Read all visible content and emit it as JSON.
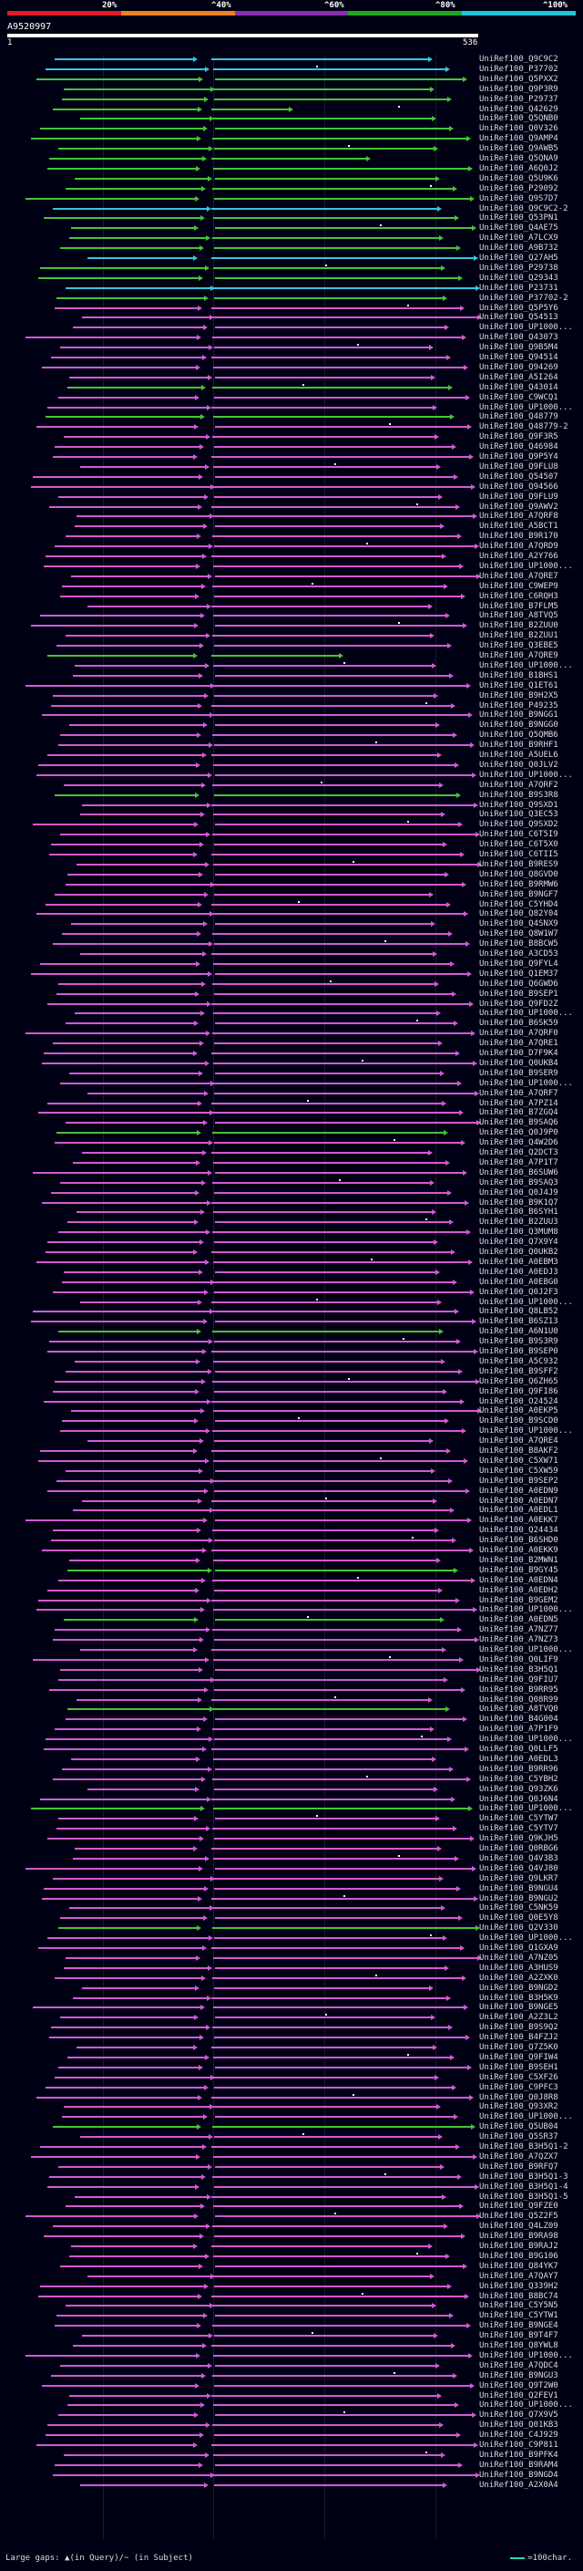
{
  "scale": {
    "labels": [
      "20%",
      "^40%",
      "^60%",
      "^80%",
      "^100%"
    ],
    "colors": [
      "#e21b2a",
      "#f08020",
      "#8a2fb0",
      "#1ea81e",
      "#1fc4d8"
    ]
  },
  "query": {
    "id": "A9520997",
    "start": "1",
    "end": "536"
  },
  "colors": {
    "cyan": "#35c6e2",
    "green": "#47c337",
    "magenta": "#d25ad3"
  },
  "footer": {
    "gaps_text": "Large gaps: ▲(in Query)/~ (in Subject)",
    "legend_text": "=100char."
  },
  "hits": [
    {
      "label": "UniRef100_Q9C9C2",
      "color": "cyan"
    },
    {
      "label": "UniRef100_P37702",
      "color": "cyan"
    },
    {
      "label": "UniRef100_Q5PXX2",
      "color": "green"
    },
    {
      "label": "UniRef100_Q9P3R9",
      "color": "green"
    },
    {
      "label": "UniRef100_P29737",
      "color": "green"
    },
    {
      "label": "UniRef100_Q42629",
      "color": "green"
    },
    {
      "label": "UniRef100_Q5QNB0",
      "color": "green"
    },
    {
      "label": "UniRef100_Q0V326",
      "color": "green"
    },
    {
      "label": "UniRef100_Q9AMP4",
      "color": "green"
    },
    {
      "label": "UniRef100_Q9AWB5",
      "color": "green"
    },
    {
      "label": "UniRef100_Q5QNA9",
      "color": "green"
    },
    {
      "label": "UniRef100_A6Q0J2",
      "color": "green"
    },
    {
      "label": "UniRef100_Q5U9K6",
      "color": "green"
    },
    {
      "label": "UniRef100_P29092",
      "color": "green"
    },
    {
      "label": "UniRef100_Q9S7D7",
      "color": "green"
    },
    {
      "label": "UniRef100_Q9C9C2-2",
      "color": "cyan"
    },
    {
      "label": "UniRef100_Q53PN1",
      "color": "green"
    },
    {
      "label": "UniRef100_Q4AE75",
      "color": "green"
    },
    {
      "label": "UniRef100_A7LCX9",
      "color": "green"
    },
    {
      "label": "UniRef100_A9B732",
      "color": "green"
    },
    {
      "label": "UniRef100_Q27AH5",
      "color": "cyan"
    },
    {
      "label": "UniRef100_P29738",
      "color": "green"
    },
    {
      "label": "UniRef100_Q29343",
      "color": "green"
    },
    {
      "label": "UniRef100_P23731",
      "color": "cyan"
    },
    {
      "label": "UniRef100_P37702-2",
      "color": "green"
    },
    {
      "label": "UniRef100_Q5P5Y6",
      "color": "magenta"
    },
    {
      "label": "UniRef100_Q54513",
      "color": "magenta"
    },
    {
      "label": "UniRef100_UP1000...",
      "color": "magenta"
    },
    {
      "label": "UniRef100_Q43073",
      "color": "magenta"
    },
    {
      "label": "UniRef100_Q9B5M4",
      "color": "magenta"
    },
    {
      "label": "UniRef100_Q94514",
      "color": "magenta"
    },
    {
      "label": "UniRef100_Q94269",
      "color": "magenta"
    },
    {
      "label": "UniRef100_A5I264",
      "color": "magenta"
    },
    {
      "label": "UniRef100_Q43014",
      "color": "green"
    },
    {
      "label": "UniRef100_C9WCQ1",
      "color": "magenta"
    },
    {
      "label": "UniRef100_UP1000...",
      "color": "magenta"
    },
    {
      "label": "UniRef100_Q48779",
      "color": "green"
    },
    {
      "label": "UniRef100_Q48779-2",
      "color": "magenta"
    },
    {
      "label": "UniRef100_Q9F3R5",
      "color": "magenta"
    },
    {
      "label": "UniRef100_Q46984",
      "color": "magenta"
    },
    {
      "label": "UniRef100_Q9P5Y4",
      "color": "magenta"
    },
    {
      "label": "UniRef100_Q9FLU8",
      "color": "magenta"
    },
    {
      "label": "UniRef100_Q54507",
      "color": "magenta"
    },
    {
      "label": "UniRef100_Q94566",
      "color": "magenta"
    },
    {
      "label": "UniRef100_Q9FLU9",
      "color": "magenta"
    },
    {
      "label": "UniRef100_Q9AWV2",
      "color": "magenta"
    },
    {
      "label": "UniRef100_A7QRF8",
      "color": "magenta"
    },
    {
      "label": "UniRef100_A5BCT1",
      "color": "magenta"
    },
    {
      "label": "UniRef100_B9R170",
      "color": "magenta"
    },
    {
      "label": "UniRef100_A7QRD9",
      "color": "magenta"
    },
    {
      "label": "UniRef100_A2Y766",
      "color": "magenta"
    },
    {
      "label": "UniRef100_UP1000...",
      "color": "magenta"
    },
    {
      "label": "UniRef100_A7QRE7",
      "color": "magenta"
    },
    {
      "label": "UniRef100_C9WEP9",
      "color": "magenta"
    },
    {
      "label": "UniRef100_C6RQH3",
      "color": "magenta"
    },
    {
      "label": "UniRef100_B7FLM5",
      "color": "magenta"
    },
    {
      "label": "UniRef100_A8TVQ5",
      "color": "magenta"
    },
    {
      "label": "UniRef100_B2ZUU0",
      "color": "magenta"
    },
    {
      "label": "UniRef100_B2ZUU1",
      "color": "magenta"
    },
    {
      "label": "UniRef100_Q3EBE5",
      "color": "magenta"
    },
    {
      "label": "UniRef100_A7QRE9",
      "color": "green"
    },
    {
      "label": "UniRef100_UP1000...",
      "color": "magenta"
    },
    {
      "label": "UniRef100_B1BHS1",
      "color": "magenta"
    },
    {
      "label": "UniRef100_Q1ET61",
      "color": "magenta"
    },
    {
      "label": "UniRef100_B9H2X5",
      "color": "magenta"
    },
    {
      "label": "UniRef100_P49235",
      "color": "magenta"
    },
    {
      "label": "UniRef100_B9NGG1",
      "color": "magenta"
    },
    {
      "label": "UniRef100_B9NGG0",
      "color": "magenta"
    },
    {
      "label": "UniRef100_Q5QMB6",
      "color": "magenta"
    },
    {
      "label": "UniRef100_B9RHF1",
      "color": "magenta"
    },
    {
      "label": "UniRef100_A5UEL6",
      "color": "magenta"
    },
    {
      "label": "UniRef100_Q0JLV2",
      "color": "magenta"
    },
    {
      "label": "UniRef100_UP1000...",
      "color": "magenta"
    },
    {
      "label": "UniRef100_A7QRF2",
      "color": "magenta"
    },
    {
      "label": "UniRef100_B9S3R8",
      "color": "green"
    },
    {
      "label": "UniRef100_Q9SXD1",
      "color": "magenta"
    },
    {
      "label": "UniRef100_Q3EC53",
      "color": "magenta"
    },
    {
      "label": "UniRef100_Q9SXD2",
      "color": "magenta"
    },
    {
      "label": "UniRef100_C6T5I9",
      "color": "magenta"
    },
    {
      "label": "UniRef100_C6T5X0",
      "color": "magenta"
    },
    {
      "label": "UniRef100_C6TII5",
      "color": "magenta"
    },
    {
      "label": "UniRef100_B9RES9",
      "color": "magenta"
    },
    {
      "label": "UniRef100_Q8GVD0",
      "color": "magenta"
    },
    {
      "label": "UniRef100_B9RMW6",
      "color": "magenta"
    },
    {
      "label": "UniRef100_B9NGF7",
      "color": "magenta"
    },
    {
      "label": "UniRef100_C5YHD4",
      "color": "magenta"
    },
    {
      "label": "UniRef100_Q82Y04",
      "color": "magenta"
    },
    {
      "label": "UniRef100_Q4SNX9",
      "color": "magenta"
    },
    {
      "label": "UniRef100_Q8W1W7",
      "color": "magenta"
    },
    {
      "label": "UniRef100_B8BCW5",
      "color": "magenta"
    },
    {
      "label": "UniRef100_A3CD53",
      "color": "magenta"
    },
    {
      "label": "UniRef100_Q9FYL4",
      "color": "magenta"
    },
    {
      "label": "UniRef100_Q1EM37",
      "color": "magenta"
    },
    {
      "label": "UniRef100_Q6GWD6",
      "color": "magenta"
    },
    {
      "label": "UniRef100_B9SEP1",
      "color": "magenta"
    },
    {
      "label": "UniRef100_Q9FD2Z",
      "color": "magenta"
    },
    {
      "label": "UniRef100_UP1000...",
      "color": "magenta"
    },
    {
      "label": "UniRef100_B6SK59",
      "color": "magenta"
    },
    {
      "label": "UniRef100_A7QRF0",
      "color": "magenta"
    },
    {
      "label": "UniRef100_A7QRE1",
      "color": "magenta"
    },
    {
      "label": "UniRef100_D7F9K4",
      "color": "magenta"
    },
    {
      "label": "UniRef100_Q0UKB4",
      "color": "magenta"
    },
    {
      "label": "UniRef100_B9SER9",
      "color": "magenta"
    },
    {
      "label": "UniRef100_UP1000...",
      "color": "magenta"
    },
    {
      "label": "UniRef100_A7QRF7",
      "color": "magenta"
    },
    {
      "label": "UniRef100_A7PZ14",
      "color": "magenta"
    },
    {
      "label": "UniRef100_B7ZGQ4",
      "color": "magenta"
    },
    {
      "label": "UniRef100_B9SAQ6",
      "color": "magenta"
    },
    {
      "label": "UniRef100_Q0J9P0",
      "color": "green"
    },
    {
      "label": "UniRef100_Q4W2D6",
      "color": "magenta"
    },
    {
      "label": "UniRef100_Q2DCT3",
      "color": "magenta"
    },
    {
      "label": "UniRef100_A7P1T7",
      "color": "magenta"
    },
    {
      "label": "UniRef100_B6SUW6",
      "color": "magenta"
    },
    {
      "label": "UniRef100_B9SAQ3",
      "color": "magenta"
    },
    {
      "label": "UniRef100_Q0J4J9",
      "color": "magenta"
    },
    {
      "label": "UniRef100_B9K1Q7",
      "color": "magenta"
    },
    {
      "label": "UniRef100_B6SYH1",
      "color": "magenta"
    },
    {
      "label": "UniRef100_B2ZUU3",
      "color": "magenta"
    },
    {
      "label": "UniRef100_Q3MUM8",
      "color": "magenta"
    },
    {
      "label": "UniRef100_Q7X9Y4",
      "color": "magenta"
    },
    {
      "label": "UniRef100_Q0UKB2",
      "color": "magenta"
    },
    {
      "label": "UniRef100_A0EBM3",
      "color": "magenta"
    },
    {
      "label": "UniRef100_A0EDJ3",
      "color": "magenta"
    },
    {
      "label": "UniRef100_A0EBG0",
      "color": "magenta"
    },
    {
      "label": "UniRef100_Q0J2F3",
      "color": "magenta"
    },
    {
      "label": "UniRef100_UP1000...",
      "color": "magenta"
    },
    {
      "label": "UniRef100_Q8LB52",
      "color": "magenta"
    },
    {
      "label": "UniRef100_B6SZ13",
      "color": "magenta"
    },
    {
      "label": "UniRef100_A6N1U0",
      "color": "green"
    },
    {
      "label": "UniRef100_B9S3R9",
      "color": "magenta"
    },
    {
      "label": "UniRef100_B9SEP0",
      "color": "magenta"
    },
    {
      "label": "UniRef100_A5C932",
      "color": "magenta"
    },
    {
      "label": "UniRef100_B9SFF2",
      "color": "magenta"
    },
    {
      "label": "UniRef100_Q6ZH65",
      "color": "magenta"
    },
    {
      "label": "UniRef100_Q9FI86",
      "color": "magenta"
    },
    {
      "label": "UniRef100_O24524",
      "color": "magenta"
    },
    {
      "label": "UniRef100_A0EKP5",
      "color": "magenta"
    },
    {
      "label": "UniRef100_B9SCD0",
      "color": "magenta"
    },
    {
      "label": "UniRef100_UP1000...",
      "color": "magenta"
    },
    {
      "label": "UniRef100_A7QRE4",
      "color": "magenta"
    },
    {
      "label": "UniRef100_B8AKF2",
      "color": "magenta"
    },
    {
      "label": "UniRef100_C5XW71",
      "color": "magenta"
    },
    {
      "label": "UniRef100_C5XW59",
      "color": "magenta"
    },
    {
      "label": "UniRef100_B9SEP2",
      "color": "magenta"
    },
    {
      "label": "UniRef100_A0EDN9",
      "color": "magenta"
    },
    {
      "label": "UniRef100_A0EDN7",
      "color": "magenta"
    },
    {
      "label": "UniRef100_A0EDL1",
      "color": "magenta"
    },
    {
      "label": "UniRef100_A0EKK7",
      "color": "magenta"
    },
    {
      "label": "UniRef100_Q24434",
      "color": "magenta"
    },
    {
      "label": "UniRef100_B6SHD0",
      "color": "magenta"
    },
    {
      "label": "UniRef100_A0EKK9",
      "color": "magenta"
    },
    {
      "label": "UniRef100_B2MWN1",
      "color": "magenta"
    },
    {
      "label": "UniRef100_B9GY45",
      "color": "green"
    },
    {
      "label": "UniRef100_A0EDN4",
      "color": "magenta"
    },
    {
      "label": "UniRef100_A0EDH2",
      "color": "magenta"
    },
    {
      "label": "UniRef100_B9GEM2",
      "color": "magenta"
    },
    {
      "label": "UniRef100_UP1000...",
      "color": "magenta"
    },
    {
      "label": "UniRef100_A0EDN5",
      "color": "green"
    },
    {
      "label": "UniRef100_A7NZ77",
      "color": "magenta"
    },
    {
      "label": "UniRef100_A7NZ73",
      "color": "magenta"
    },
    {
      "label": "UniRef100_UP1000...",
      "color": "magenta"
    },
    {
      "label": "UniRef100_Q0LIF9",
      "color": "magenta"
    },
    {
      "label": "UniRef100_B3H5Q1",
      "color": "magenta"
    },
    {
      "label": "UniRef100_Q9FIU7",
      "color": "magenta"
    },
    {
      "label": "UniRef100_B9RR95",
      "color": "magenta"
    },
    {
      "label": "UniRef100_Q08R99",
      "color": "magenta"
    },
    {
      "label": "UniRef100_A8TVQ0",
      "color": "green"
    },
    {
      "label": "UniRef100_B4G004",
      "color": "magenta"
    },
    {
      "label": "UniRef100_A7P1F9",
      "color": "magenta"
    },
    {
      "label": "UniRef100_UP1000...",
      "color": "magenta"
    },
    {
      "label": "UniRef100_Q0LLF5",
      "color": "magenta"
    },
    {
      "label": "UniRef100_A0EDL3",
      "color": "magenta"
    },
    {
      "label": "UniRef100_B9RR96",
      "color": "magenta"
    },
    {
      "label": "UniRef100_C5YBH2",
      "color": "magenta"
    },
    {
      "label": "UniRef100_Q93ZK6",
      "color": "magenta"
    },
    {
      "label": "UniRef100_Q0J6N4",
      "color": "magenta"
    },
    {
      "label": "UniRef100_UP1000...",
      "color": "green"
    },
    {
      "label": "UniRef100_C5YTW7",
      "color": "magenta"
    },
    {
      "label": "UniRef100_C5YTV7",
      "color": "magenta"
    },
    {
      "label": "UniRef100_Q9KJH5",
      "color": "magenta"
    },
    {
      "label": "UniRef100_Q0RBG6",
      "color": "magenta"
    },
    {
      "label": "UniRef100_Q4V3B3",
      "color": "magenta"
    },
    {
      "label": "UniRef100_Q4VJ80",
      "color": "magenta"
    },
    {
      "label": "UniRef100_Q9LKR7",
      "color": "magenta"
    },
    {
      "label": "UniRef100_B9NGU4",
      "color": "magenta"
    },
    {
      "label": "UniRef100_B9NGU2",
      "color": "magenta"
    },
    {
      "label": "UniRef100_C5NK59",
      "color": "magenta"
    },
    {
      "label": "UniRef100_Q0E5Y8",
      "color": "magenta"
    },
    {
      "label": "UniRef100_Q2V330",
      "color": "green"
    },
    {
      "label": "UniRef100_UP1000...",
      "color": "magenta"
    },
    {
      "label": "UniRef100_Q1GXA9",
      "color": "magenta"
    },
    {
      "label": "UniRef100_A7NZ05",
      "color": "magenta"
    },
    {
      "label": "UniRef100_A3HUS9",
      "color": "magenta"
    },
    {
      "label": "UniRef100_A2ZXK0",
      "color": "magenta"
    },
    {
      "label": "UniRef100_B9NGD2",
      "color": "magenta"
    },
    {
      "label": "UniRef100_B3H5K9",
      "color": "magenta"
    },
    {
      "label": "UniRef100_B9NGE5",
      "color": "magenta"
    },
    {
      "label": "UniRef100_A2Z3L2",
      "color": "magenta"
    },
    {
      "label": "UniRef100_B9S9Q2",
      "color": "magenta"
    },
    {
      "label": "UniRef100_B4FZJ2",
      "color": "magenta"
    },
    {
      "label": "UniRef100_Q7Z5K0",
      "color": "magenta"
    },
    {
      "label": "UniRef100_Q9FIW4",
      "color": "magenta"
    },
    {
      "label": "UniRef100_B9SEH1",
      "color": "magenta"
    },
    {
      "label": "UniRef100_C5XF26",
      "color": "magenta"
    },
    {
      "label": "UniRef100_C9PFC3",
      "color": "magenta"
    },
    {
      "label": "UniRef100_Q0J8R8",
      "color": "magenta"
    },
    {
      "label": "UniRef100_Q93XR2",
      "color": "magenta"
    },
    {
      "label": "UniRef100_UP1000...",
      "color": "magenta"
    },
    {
      "label": "UniRef100_Q5UB04",
      "color": "green"
    },
    {
      "label": "UniRef100_Q5SR37",
      "color": "magenta"
    },
    {
      "label": "UniRef100_B3H5Q1-2",
      "color": "magenta"
    },
    {
      "label": "UniRef100_A7QZX7",
      "color": "magenta"
    },
    {
      "label": "UniRef100_B9RFQ7",
      "color": "magenta"
    },
    {
      "label": "UniRef100_B3H5Q1-3",
      "color": "magenta"
    },
    {
      "label": "UniRef100_B3H5Q1-4",
      "color": "magenta"
    },
    {
      "label": "UniRef100_B3H5Q1-5",
      "color": "magenta"
    },
    {
      "label": "UniRef100_Q9FZE0",
      "color": "magenta"
    },
    {
      "label": "UniRef100_Q5Z2F5",
      "color": "magenta"
    },
    {
      "label": "UniRef100_Q4LZ09",
      "color": "magenta"
    },
    {
      "label": "UniRef100_B9RA98",
      "color": "magenta"
    },
    {
      "label": "UniRef100_B9RAJ2",
      "color": "magenta"
    },
    {
      "label": "UniRef100_B9G106",
      "color": "magenta"
    },
    {
      "label": "UniRef100_Q84YK7",
      "color": "magenta"
    },
    {
      "label": "UniRef100_A7QAY7",
      "color": "magenta"
    },
    {
      "label": "UniRef100_Q339H2",
      "color": "magenta"
    },
    {
      "label": "UniRef100_B8BC74",
      "color": "magenta"
    },
    {
      "label": "UniRef100_C5Y5N5",
      "color": "magenta"
    },
    {
      "label": "UniRef100_C5YTW1",
      "color": "magenta"
    },
    {
      "label": "UniRef100_B9NGE4",
      "color": "magenta"
    },
    {
      "label": "UniRef100_B9T4F7",
      "color": "magenta"
    },
    {
      "label": "UniRef100_Q8YWL8",
      "color": "magenta"
    },
    {
      "label": "UniRef100_UP1000...",
      "color": "magenta"
    },
    {
      "label": "UniRef100_A7QDC4",
      "color": "magenta"
    },
    {
      "label": "UniRef100_B9NGU3",
      "color": "magenta"
    },
    {
      "label": "UniRef100_Q9T2W0",
      "color": "magenta"
    },
    {
      "label": "UniRef100_Q2FEV1",
      "color": "magenta"
    },
    {
      "label": "UniRef100_UP1000...",
      "color": "magenta"
    },
    {
      "label": "UniRef100_Q7X9V5",
      "color": "magenta"
    },
    {
      "label": "UniRef100_Q01KB3",
      "color": "magenta"
    },
    {
      "label": "UniRef100_C4J929",
      "color": "magenta"
    },
    {
      "label": "UniRef100_C9P811",
      "color": "magenta"
    },
    {
      "label": "UniRef100_B9PFK4",
      "color": "magenta"
    },
    {
      "label": "UniRef100_B9RAM4",
      "color": "magenta"
    },
    {
      "label": "UniRef100_B9NGD4",
      "color": "magenta"
    },
    {
      "label": "UniRef100_A2X0A4",
      "color": "magenta"
    }
  ]
}
